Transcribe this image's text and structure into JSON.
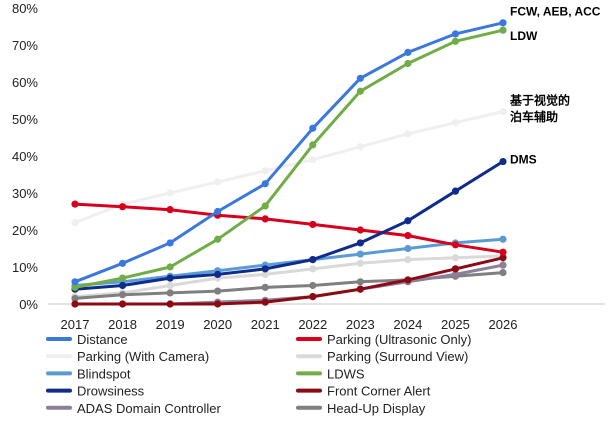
{
  "chart_data": {
    "type": "line",
    "title": "",
    "xlabel": "",
    "ylabel": "",
    "x": [
      "2017",
      "2018",
      "2019",
      "2020",
      "2021",
      "2022",
      "2023",
      "2024",
      "2025",
      "2026"
    ],
    "ylim": [
      0,
      80
    ],
    "yticks": [
      "0%",
      "10%",
      "20%",
      "30%",
      "40%",
      "50%",
      "60%",
      "70%",
      "80%"
    ],
    "grid": false,
    "legend_position": "bottom",
    "series": [
      {
        "name": "Parking (With Camera)",
        "color": "#efefef",
        "values": [
          22,
          27,
          30,
          33,
          36,
          39,
          42.5,
          46,
          49,
          52
        ],
        "marker": true
      },
      {
        "name": "Parking (Surround View)",
        "color": "#d9d9d9",
        "values": [
          2,
          3,
          5,
          7,
          8,
          9.5,
          11,
          12,
          12.5,
          13
        ],
        "marker": true
      },
      {
        "name": "Head-Up Display",
        "color": "#7f7f7f",
        "values": [
          1.5,
          2.5,
          3,
          3.5,
          4.5,
          5,
          6,
          6.5,
          7.5,
          8.5
        ],
        "marker": true
      },
      {
        "name": "ADAS Domain Controller",
        "color": "#8c8098",
        "values": [
          0,
          0,
          0,
          0.5,
          1,
          2,
          4,
          6,
          8,
          10.5
        ],
        "marker": true
      },
      {
        "name": "Front Corner Alert",
        "color": "#8b0a14",
        "values": [
          0,
          0,
          0,
          0,
          0.5,
          2,
          4,
          6.5,
          9.5,
          12.5
        ],
        "marker": true
      },
      {
        "name": "Blindspot",
        "color": "#5b9bd5",
        "values": [
          5,
          6,
          7.5,
          9,
          10.5,
          12,
          13.5,
          15,
          16.5,
          17.5
        ],
        "marker": true
      },
      {
        "name": "Parking (Ultrasonic Only)",
        "color": "#d6001c",
        "values": [
          27,
          26.3,
          25.5,
          24,
          23,
          21.5,
          20,
          18.5,
          16,
          14
        ],
        "marker": true
      },
      {
        "name": "Drowsiness",
        "color": "#0f2c8c",
        "values": [
          4,
          5,
          7,
          8,
          9.5,
          12,
          16.5,
          22.5,
          30.5,
          38.5
        ],
        "marker": true
      },
      {
        "name": "LDWS",
        "color": "#70ad47",
        "values": [
          4.5,
          7,
          10,
          17.5,
          26.5,
          43,
          57.5,
          65,
          71,
          74
        ],
        "marker": true
      },
      {
        "name": "Distance",
        "color": "#3a78e0",
        "values": [
          6,
          11,
          16.5,
          25,
          32.5,
          47.5,
          61,
          68,
          73,
          76
        ],
        "marker": true
      }
    ],
    "legend": [
      {
        "name": "Distance",
        "color": "#3a78e0"
      },
      {
        "name": "Parking (Ultrasonic Only)",
        "color": "#d6001c"
      },
      {
        "name": "Parking (With Camera)",
        "color": "#efefef"
      },
      {
        "name": "Parking (Surround View)",
        "color": "#d9d9d9"
      },
      {
        "name": "Blindspot",
        "color": "#5b9bd5"
      },
      {
        "name": "LDWS",
        "color": "#70ad47"
      },
      {
        "name": "Drowsiness",
        "color": "#0f2c8c"
      },
      {
        "name": "Front Corner Alert",
        "color": "#8b0a14"
      },
      {
        "name": "ADAS Domain Controller",
        "color": "#8c8098"
      },
      {
        "name": "Head-Up Display",
        "color": "#7f7f7f"
      }
    ],
    "annotations": [
      {
        "text": "FCW, AEB, ACC",
        "y": 79
      },
      {
        "text": "LDW",
        "y": 72.5
      },
      {
        "text": "基于视觉的",
        "y": 55
      },
      {
        "text": "泊车辅助",
        "y": 50.5
      },
      {
        "text": "DMS",
        "y": 39
      }
    ]
  }
}
